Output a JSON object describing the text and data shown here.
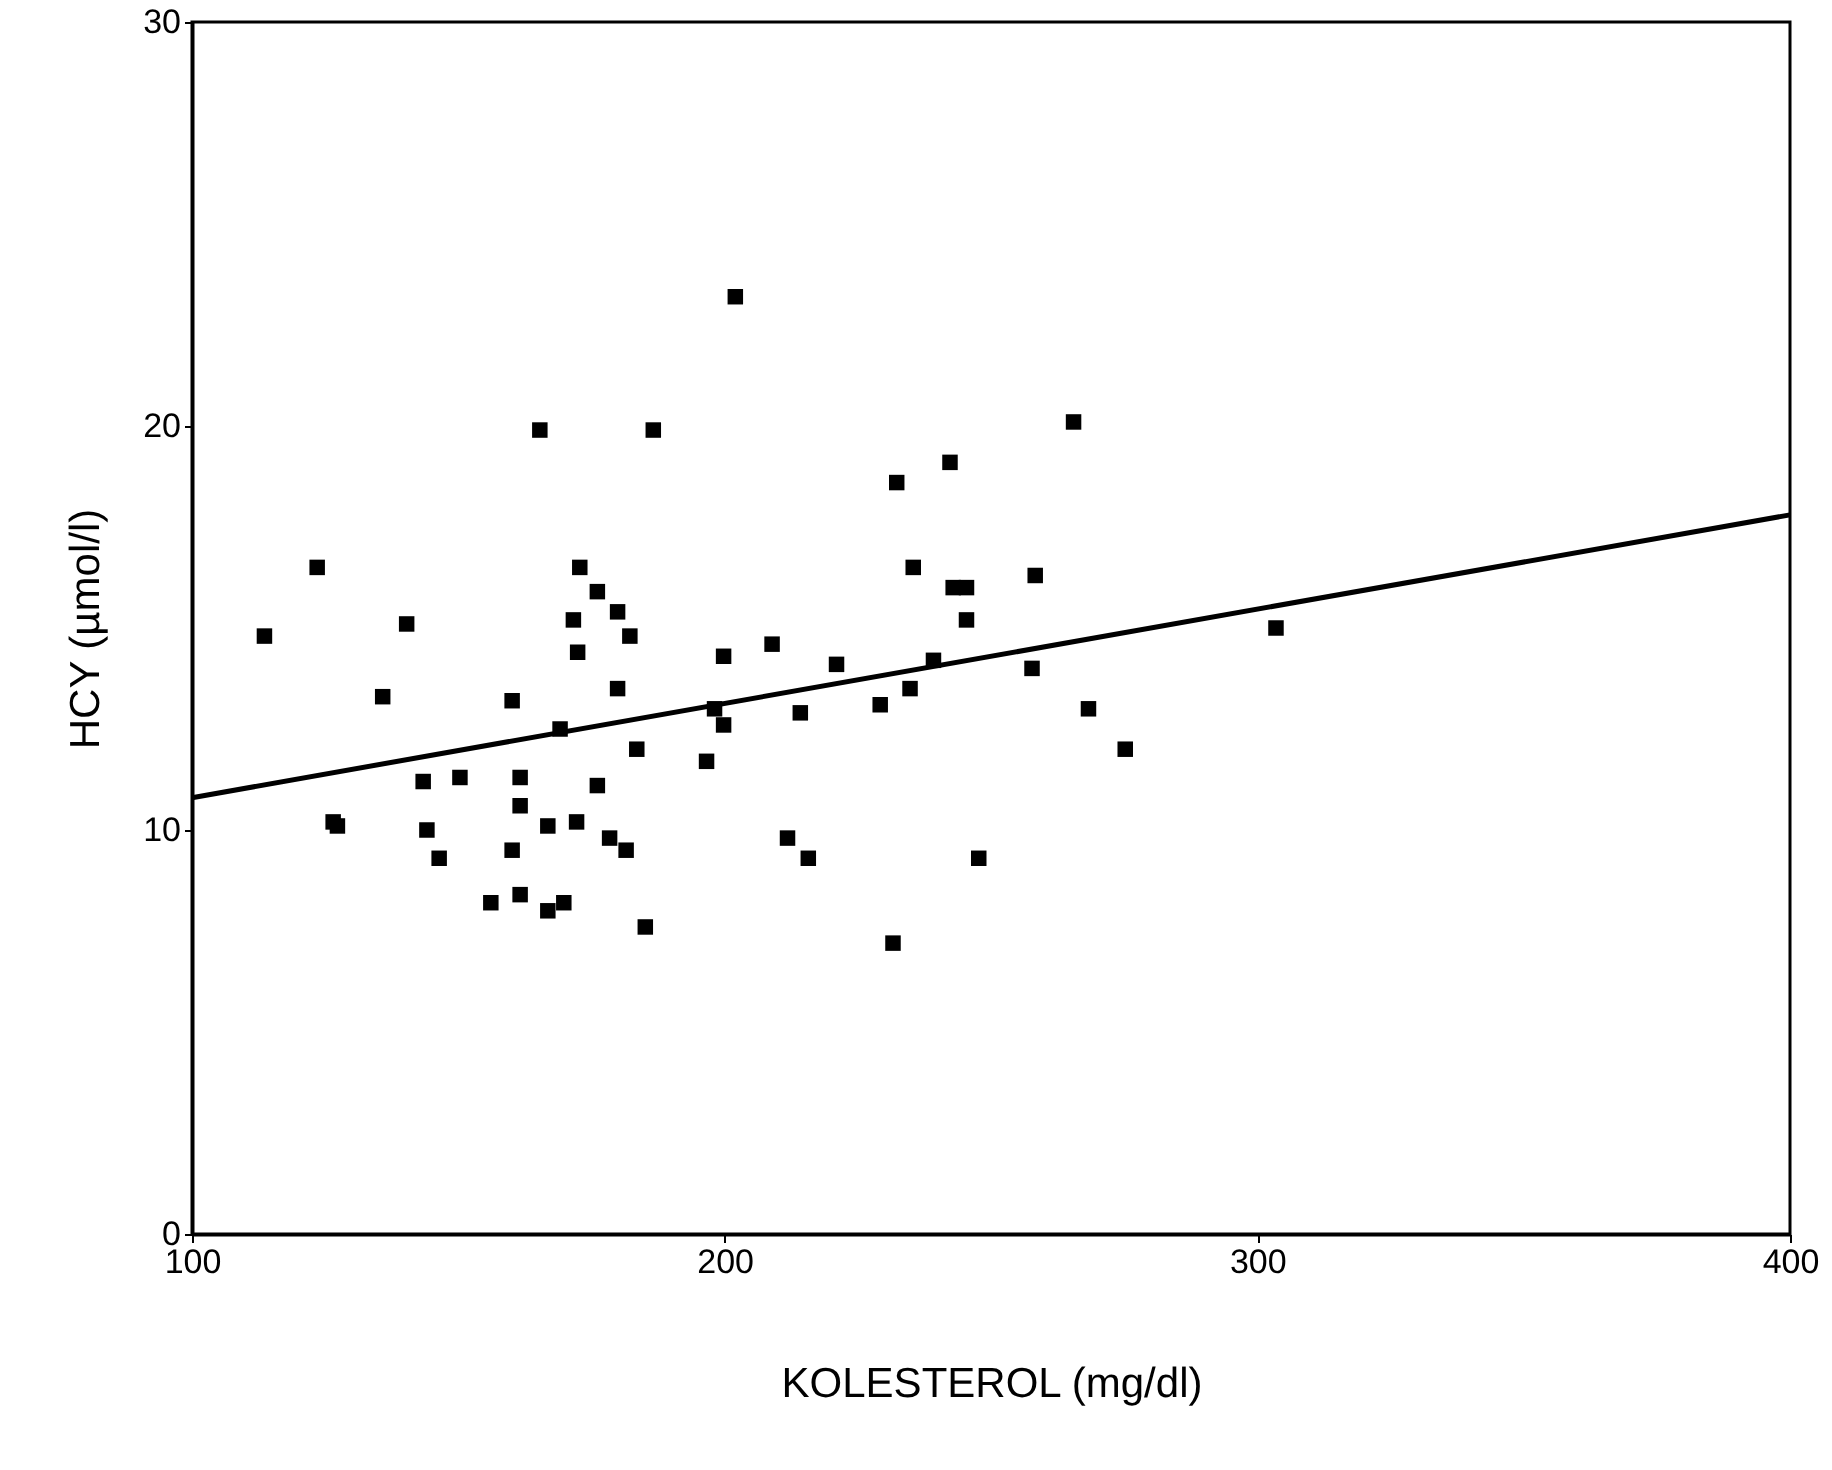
{
  "chart_data": {
    "type": "scatter",
    "xlabel": "KOLESTEROL (mg/dl)",
    "ylabel": "HCY (µmol/l)",
    "xlim": [
      100,
      400
    ],
    "xticks": [
      100,
      200,
      300,
      400
    ],
    "ylim": [
      0,
      30
    ],
    "yticks": [
      0,
      10,
      20,
      30
    ],
    "marker": "square",
    "line_style": "solid",
    "series": [
      {
        "color": "#000000",
        "x": [
          165.3,
          186.6,
          123.5,
          172.8,
          176.1,
          179.9,
          113.6,
          140.3,
          171.6,
          182.2,
          172.4,
          135.8,
          160.1,
          179.9,
          169.1,
          183.5,
          143.4,
          150.3,
          161.6,
          176.1,
          161.6,
          126.5,
          127.3,
          144.1,
          166.8,
          172.2,
          178.4,
          181.5,
          160.1,
          146.4,
          156.1,
          161.6,
          166.8,
          169.8,
          185.1,
          265.5,
          242.3,
          232.3,
          235.4,
          258.3,
          242.9,
          245.4,
          245.4,
          199.8,
          208.9,
          221.0,
          239.2,
          257.7,
          198.1,
          199.8,
          214.2,
          229.2,
          234.8,
          268.3,
          275.2,
          196.6,
          211.8,
          215.7,
          247.7,
          231.6,
          202.0,
          303.5
        ],
        "values": [
          19.9,
          19.9,
          16.5,
          16.5,
          15.9,
          15.4,
          14.8,
          15.1,
          15.2,
          14.8,
          14.4,
          13.3,
          13.2,
          13.5,
          12.5,
          12.0,
          11.2,
          11.3,
          11.3,
          11.1,
          10.6,
          10.2,
          10.1,
          10.0,
          10.1,
          10.2,
          9.8,
          9.5,
          9.5,
          9.3,
          8.2,
          8.4,
          8.0,
          8.2,
          7.6,
          20.1,
          19.1,
          18.6,
          16.5,
          16.3,
          16.0,
          16.0,
          15.2,
          14.3,
          14.6,
          14.1,
          14.2,
          14.0,
          13.0,
          12.6,
          12.9,
          13.1,
          13.5,
          13.0,
          12.0,
          11.7,
          9.8,
          9.3,
          9.3,
          7.2,
          23.2,
          15.0
        ]
      },
      {
        "type": "line",
        "marker": "none",
        "color": "#000000",
        "x": [
          100,
          400
        ],
        "values": [
          10.8,
          17.8
        ]
      }
    ]
  }
}
